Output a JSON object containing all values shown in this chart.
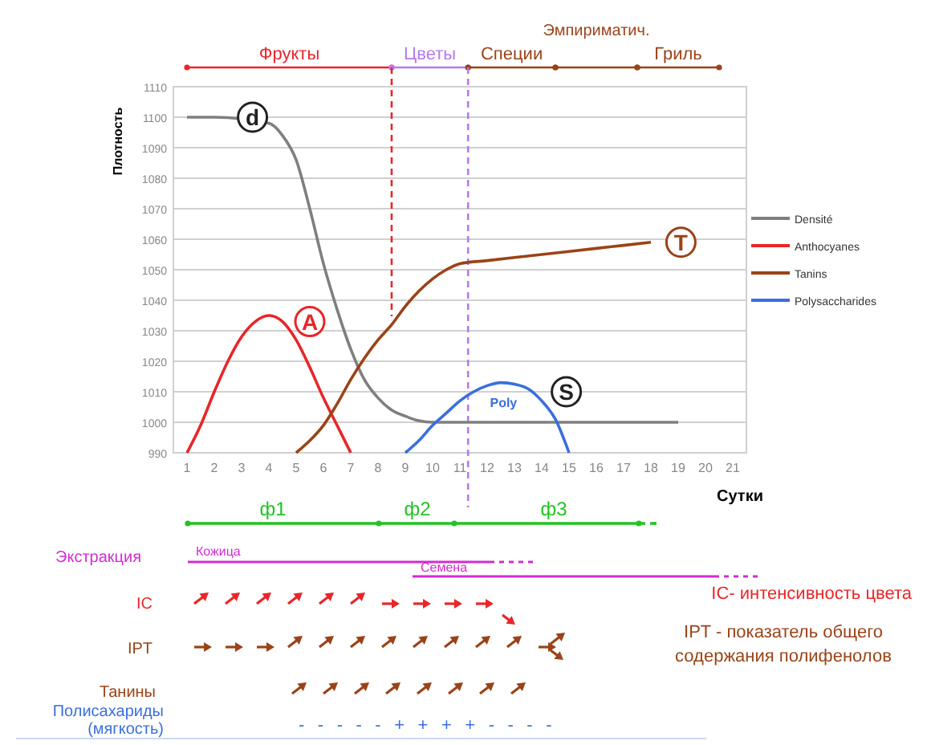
{
  "chart_data": {
    "type": "line",
    "ylabel": "Плотность",
    "xlabel": "Сутки",
    "xlim": [
      0.5,
      21.5
    ],
    "xticks": [
      1,
      2,
      3,
      4,
      5,
      6,
      7,
      8,
      9,
      10,
      11,
      12,
      13,
      14,
      15,
      16,
      17,
      18,
      19,
      20,
      21
    ],
    "ylim": [
      990,
      1110
    ],
    "yticks": [
      990,
      1000,
      1010,
      1020,
      1030,
      1040,
      1050,
      1060,
      1070,
      1080,
      1090,
      1100,
      1110
    ],
    "grid": "y",
    "legend": "right",
    "line_style": "solid",
    "marker": "none",
    "series": [
      {
        "name": "Densité",
        "color": "#7f7f7f",
        "x": [
          1,
          2,
          4,
          4.5,
          5,
          5.5,
          6,
          6.5,
          7,
          7.5,
          8,
          8.5,
          9,
          9.5,
          10,
          19
        ],
        "values": [
          1100,
          1100,
          1098,
          1094,
          1086,
          1070,
          1052,
          1037,
          1024,
          1014,
          1008,
          1004,
          1002,
          1000.5,
          1000,
          1000
        ]
      },
      {
        "name": "Anthocyanes",
        "color": "#e8262a",
        "x": [
          1,
          1.5,
          2,
          2.5,
          3,
          3.5,
          4,
          4.5,
          5,
          5.5,
          6,
          6.5,
          7
        ],
        "values": [
          990,
          999,
          1010,
          1020,
          1028,
          1033,
          1035,
          1033,
          1027,
          1018,
          1008,
          999,
          990
        ]
      },
      {
        "name": "Tanins",
        "color": "#9a4318",
        "x": [
          5,
          5.5,
          6,
          6.5,
          7,
          7.5,
          8,
          8.5,
          9,
          9.5,
          10,
          10.5,
          11,
          12,
          14,
          16,
          18
        ],
        "values": [
          990,
          994,
          999,
          1006,
          1014,
          1021,
          1027,
          1032,
          1038,
          1043,
          1047,
          1050,
          1052,
          1053,
          1055,
          1057,
          1059
        ]
      },
      {
        "name": "Polysaccharides",
        "color": "#3a6fdc",
        "x": [
          9,
          9.5,
          10,
          10.5,
          11,
          11.5,
          12,
          12.5,
          13,
          13.5,
          14,
          14.5,
          15
        ],
        "values": [
          990,
          994,
          999,
          1003,
          1007,
          1010,
          1012,
          1013,
          1012.5,
          1011,
          1007,
          1001,
          990
        ]
      }
    ],
    "ref_lines": [
      {
        "axis": "x",
        "value": 8.5,
        "color": "#e8262a",
        "line_style": "dashed"
      },
      {
        "axis": "x",
        "value": 11.3,
        "color": "#b57af0",
        "line_style": "dashed"
      }
    ],
    "annotations": [
      {
        "text": "d",
        "x": 3.4,
        "y": 1100
      },
      {
        "text": "A",
        "x": 5.5,
        "y": 1033
      },
      {
        "text": "T",
        "x": 19.1,
        "y": 1059
      },
      {
        "text": "S",
        "x": 14.9,
        "y": 1010
      },
      "ф1",
      "ф2",
      "ф3",
      "Экстракция",
      "Кожица",
      "Семена",
      "IC",
      "IPT",
      "Танины",
      "Полисахариды (мягкость)",
      "- - - - - + + + + - - - -",
      "IC- интенсивность цвета",
      "IPT - показатель общего содержания полифенолов",
      "Фрукты",
      "Цветы",
      "Специи",
      "Эмпириматич.",
      "Гриль",
      "Poly"
    ]
  }
}
